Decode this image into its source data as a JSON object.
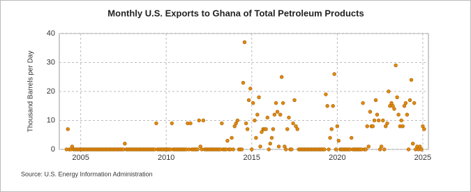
{
  "chart_data": {
    "type": "scatter",
    "title": "Monthly U.S. Exports to Ghana of Total Petroleum Products",
    "y_label": "Thousand Barrels per Day",
    "source": "Source: U.S. Energy Information Administration",
    "color": "#e08a10",
    "grid": true,
    "xlim": [
      2003.75,
      2025.33
    ],
    "xticks": [
      2005,
      2010,
      2015,
      2020,
      2025
    ],
    "ylim": [
      0,
      40
    ],
    "yticks": [
      0,
      10,
      20,
      30,
      40
    ],
    "x": [
      2004.17,
      2004.25,
      2004.33,
      2004.42,
      2004.5,
      2004.58,
      2004.67,
      2004.75,
      2004.83,
      2004.92,
      2005,
      2005.08,
      2005.17,
      2005.25,
      2005.33,
      2005.42,
      2005.5,
      2005.58,
      2005.67,
      2005.75,
      2005.83,
      2005.92,
      2006,
      2006.08,
      2006.17,
      2006.25,
      2006.33,
      2006.42,
      2006.5,
      2006.58,
      2006.67,
      2006.75,
      2006.83,
      2006.92,
      2007,
      2007.08,
      2007.17,
      2007.25,
      2007.33,
      2007.42,
      2007.5,
      2007.58,
      2007.67,
      2007.75,
      2007.83,
      2007.92,
      2008,
      2008.08,
      2008.17,
      2008.25,
      2008.33,
      2008.42,
      2008.5,
      2008.58,
      2008.67,
      2008.75,
      2008.83,
      2008.92,
      2009,
      2009.08,
      2009.17,
      2009.25,
      2009.33,
      2009.42,
      2009.5,
      2009.58,
      2009.67,
      2009.75,
      2009.83,
      2009.92,
      2010,
      2010.08,
      2010.17,
      2010.25,
      2010.33,
      2010.42,
      2010.5,
      2010.58,
      2010.67,
      2010.75,
      2010.83,
      2010.92,
      2011,
      2011.08,
      2011.17,
      2011.25,
      2011.33,
      2011.42,
      2011.5,
      2011.58,
      2011.67,
      2011.75,
      2011.83,
      2011.92,
      2012,
      2012.08,
      2012.17,
      2012.25,
      2012.33,
      2012.42,
      2012.5,
      2012.58,
      2012.67,
      2012.75,
      2012.83,
      2012.92,
      2013,
      2013.08,
      2013.17,
      2013.25,
      2013.33,
      2013.42,
      2013.5,
      2013.58,
      2013.67,
      2013.75,
      2013.83,
      2013.92,
      2014,
      2014.08,
      2014.17,
      2014.25,
      2014.33,
      2014.42,
      2014.5,
      2014.58,
      2014.67,
      2014.75,
      2014.83,
      2014.92,
      2015,
      2015.08,
      2015.17,
      2015.25,
      2015.33,
      2015.42,
      2015.5,
      2015.58,
      2015.67,
      2015.75,
      2015.83,
      2015.92,
      2016,
      2016.08,
      2016.17,
      2016.25,
      2016.33,
      2016.42,
      2016.5,
      2016.58,
      2016.67,
      2016.75,
      2016.83,
      2016.92,
      2017,
      2017.08,
      2017.17,
      2017.25,
      2017.33,
      2017.42,
      2017.5,
      2017.58,
      2017.67,
      2017.75,
      2017.83,
      2017.92,
      2018,
      2018.08,
      2018.17,
      2018.25,
      2018.33,
      2018.42,
      2018.5,
      2018.58,
      2018.67,
      2018.75,
      2018.83,
      2018.92,
      2019,
      2019.08,
      2019.17,
      2019.25,
      2019.33,
      2019.42,
      2019.5,
      2019.58,
      2019.67,
      2019.75,
      2019.83,
      2019.92,
      2020,
      2020.08,
      2020.17,
      2020.25,
      2020.33,
      2020.42,
      2020.5,
      2020.58,
      2020.67,
      2020.75,
      2020.83,
      2020.92,
      2021,
      2021.08,
      2021.17,
      2021.25,
      2021.33,
      2021.42,
      2021.5,
      2021.58,
      2021.67,
      2021.75,
      2021.83,
      2021.92,
      2022,
      2022.08,
      2022.17,
      2022.25,
      2022.33,
      2022.42,
      2022.5,
      2022.58,
      2022.67,
      2022.75,
      2022.83,
      2022.92,
      2023,
      2023.08,
      2023.17,
      2023.25,
      2023.33,
      2023.42,
      2023.5,
      2023.58,
      2023.67,
      2023.75,
      2023.83,
      2023.92,
      2024,
      2024.08,
      2024.17,
      2024.25,
      2024.33,
      2024.42,
      2024.5,
      2024.58,
      2024.67,
      2024.75,
      2024.83,
      2024.92,
      2025,
      2025.08
    ],
    "values": [
      0,
      7,
      0,
      0,
      1,
      0,
      0,
      0,
      0,
      0,
      0,
      0,
      0,
      0,
      0,
      0,
      0,
      0,
      0,
      0,
      0,
      0,
      0,
      0,
      0,
      0,
      0,
      0,
      0,
      0,
      0,
      0,
      0,
      0,
      0,
      0,
      0,
      0,
      0,
      0,
      0,
      2,
      0,
      0,
      0,
      0,
      0,
      0,
      0,
      0,
      0,
      0,
      0,
      0,
      0,
      0,
      0,
      0,
      0,
      0,
      0,
      0,
      0,
      9,
      0,
      0,
      0,
      0,
      0,
      0,
      0,
      0,
      0,
      0,
      9,
      0,
      0,
      0,
      0,
      0,
      0,
      0,
      0,
      0,
      0,
      9,
      0,
      9,
      0,
      0,
      0,
      0,
      0,
      10,
      1,
      0,
      10,
      0,
      0,
      0,
      0,
      0,
      0,
      0,
      0,
      0,
      0,
      0,
      0,
      9,
      0,
      0,
      0,
      3,
      0,
      0,
      4,
      0,
      8,
      9,
      10,
      0,
      0,
      0,
      23,
      37,
      9,
      7,
      17,
      21,
      0,
      16,
      10,
      4,
      12,
      18,
      1,
      6,
      7,
      7,
      7,
      11,
      0,
      2,
      4,
      7,
      12,
      16,
      13,
      1,
      12,
      25,
      16,
      1,
      0,
      7,
      11,
      0,
      0,
      9,
      17,
      8,
      7,
      0,
      0,
      0,
      0,
      0,
      0,
      0,
      0,
      0,
      0,
      0,
      0,
      0,
      0,
      0,
      0,
      0,
      0,
      0,
      19,
      15,
      0,
      4,
      7,
      15,
      26,
      0,
      8,
      3,
      0,
      0,
      0,
      0,
      0,
      0,
      0,
      0,
      4,
      0,
      0,
      0,
      0,
      0,
      0,
      0,
      16,
      0,
      0,
      8,
      1,
      13,
      8,
      8,
      10,
      17,
      12,
      10,
      0,
      1,
      10,
      0,
      8,
      9,
      20,
      15,
      16,
      15,
      14,
      29,
      18,
      12,
      8,
      10,
      8,
      15,
      16,
      12,
      0,
      17,
      24,
      2,
      16,
      0,
      1,
      0,
      1,
      0,
      8,
      7
    ]
  }
}
